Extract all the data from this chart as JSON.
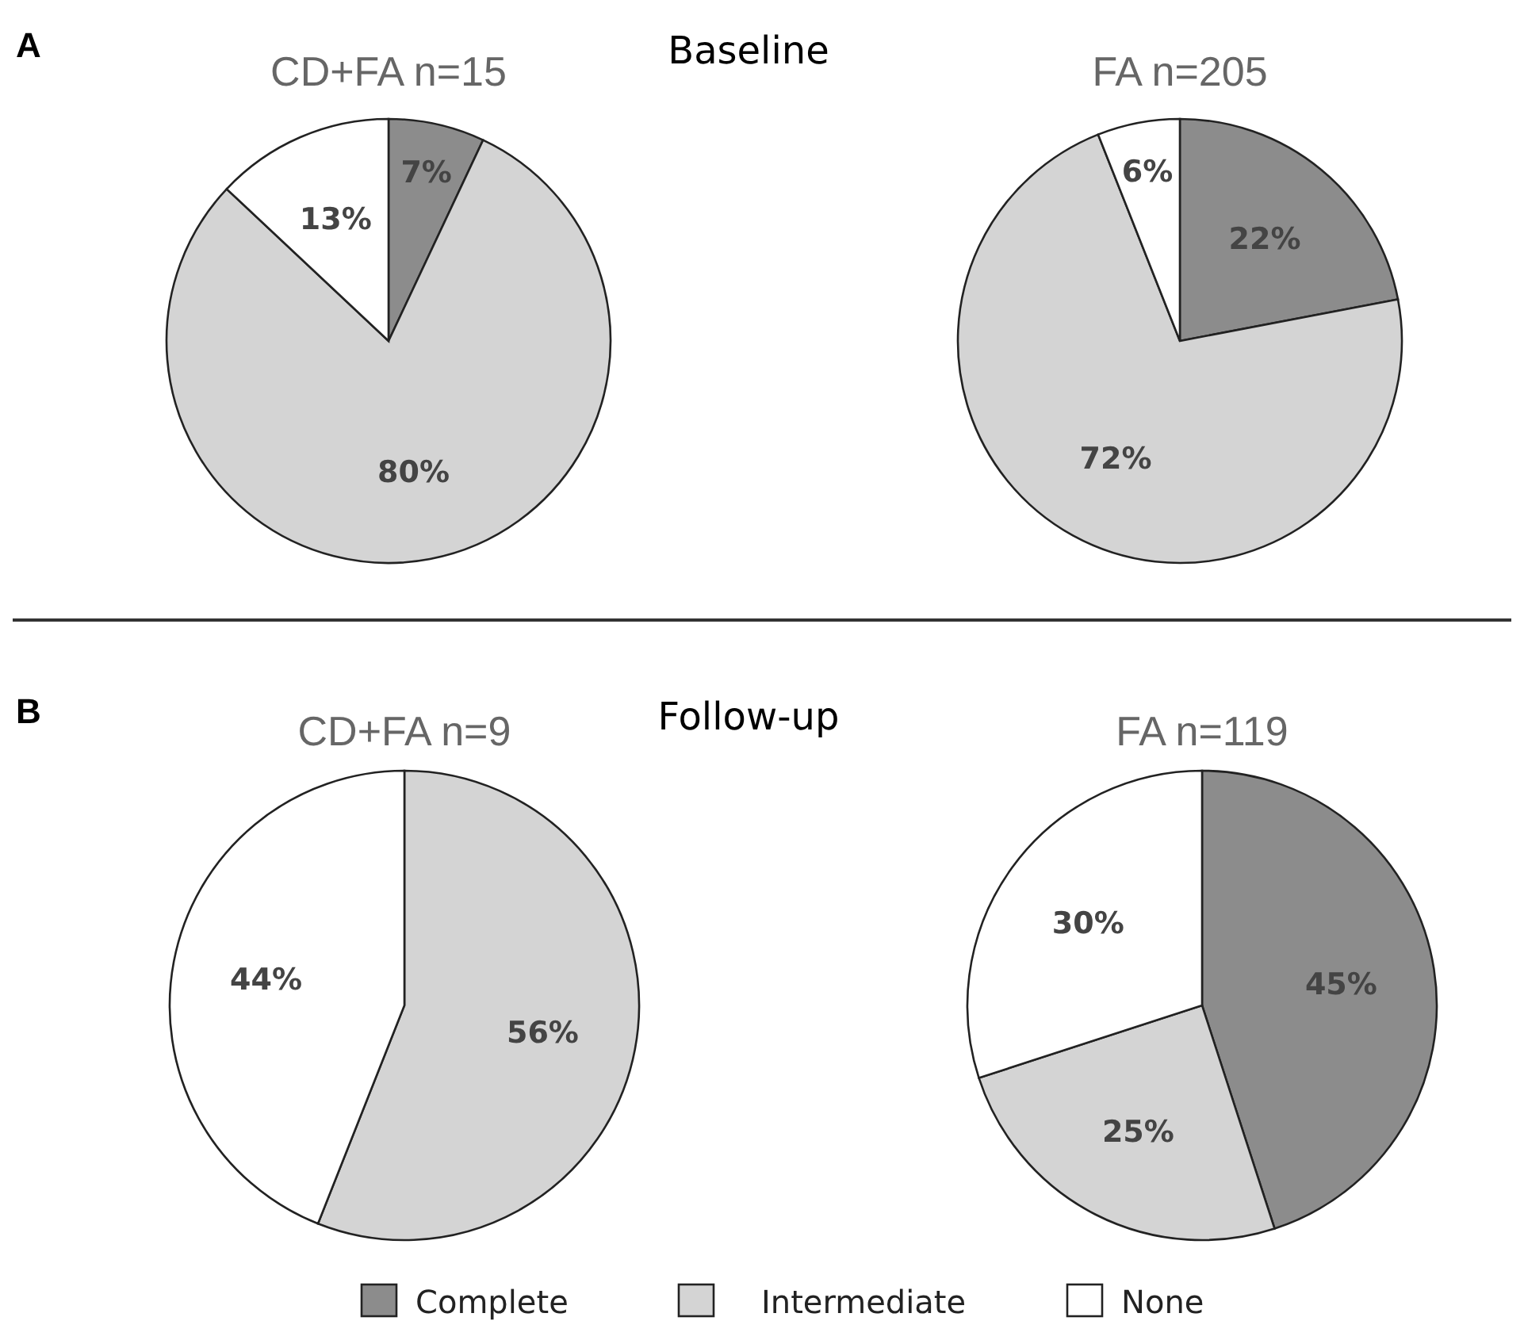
{
  "chart_data": [
    {
      "type": "pie",
      "title": "CD+FA n=15",
      "annotations": [
        "A",
        "Baseline"
      ],
      "categories": [
        "Complete",
        "Intermediate",
        "None"
      ],
      "values": [
        7,
        80,
        13
      ],
      "colors": [
        "#8c8c8c",
        "#d4d4d4",
        "#ffffff"
      ],
      "value_labels": [
        "7%",
        "80%",
        "13%"
      ],
      "legend": "bottom"
    },
    {
      "type": "pie",
      "title": "FA n=205",
      "categories": [
        null,
        null,
        null
      ],
      "values": [
        22,
        72,
        6
      ],
      "colors": [
        "#8c8c8c",
        "#d4d4d4",
        "#ffffff"
      ],
      "value_labels": [
        "22%",
        "72%",
        "6%"
      ]
    },
    {
      "type": "pie",
      "title": "CD+FA n=9",
      "annotations": [
        "B",
        "Follow-up"
      ],
      "categories": [
        null,
        null
      ],
      "values": [
        56,
        44
      ],
      "colors": [
        "#d4d4d4",
        "#ffffff"
      ],
      "value_labels": [
        "56%",
        "44%"
      ]
    },
    {
      "type": "pie",
      "title": "FA n=119",
      "categories": [
        null,
        null,
        null
      ],
      "values": [
        45,
        25,
        30
      ],
      "colors": [
        "#8c8c8c",
        "#d4d4d4",
        "#ffffff"
      ],
      "value_labels": [
        "45%",
        "25%",
        "30%"
      ]
    }
  ]
}
